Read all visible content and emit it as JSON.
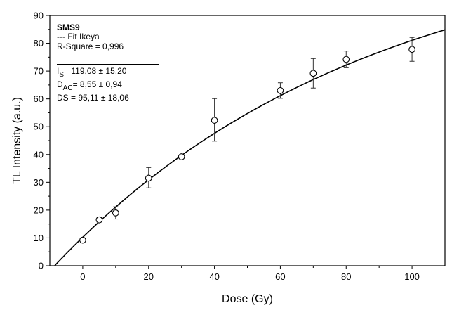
{
  "chart_data": {
    "type": "scatter",
    "title": "",
    "xlabel": "Dose (Gy)",
    "ylabel": "TL Intensity (a.u.)",
    "xlim": [
      -10,
      110
    ],
    "ylim": [
      0,
      90
    ],
    "x_ticks": [
      0,
      20,
      40,
      60,
      80,
      100
    ],
    "y_ticks": [
      0,
      10,
      20,
      30,
      40,
      50,
      60,
      70,
      80,
      90
    ],
    "grid": false,
    "series": [
      {
        "name": "SMS9",
        "marker": "open-circle",
        "x": [
          0,
          5,
          10,
          20,
          30,
          40,
          60,
          70,
          80,
          100
        ],
        "y": [
          9.2,
          16.5,
          19.0,
          31.5,
          39.2,
          52.3,
          63.0,
          69.2,
          74.2,
          77.8
        ],
        "y_err_low": [
          0.8,
          0.8,
          2.2,
          3.5,
          0.6,
          7.5,
          2.8,
          5.3,
          3.0,
          4.3
        ],
        "y_err_high": [
          0.8,
          0.8,
          2.2,
          3.8,
          0.6,
          7.8,
          2.8,
          5.3,
          3.0,
          4.3
        ]
      }
    ],
    "fit": {
      "name": "Fit Ikeya",
      "model": "y = Is*(1 - exp(-(x + Dac)/Ds))",
      "Is": 119.08,
      "Dac": 8.55,
      "Ds": 95.11
    },
    "legend": {
      "placement": "top-left",
      "lines": [
        {
          "prefix": "SMS9",
          "sub": "",
          "suffix": "",
          "bold": true
        },
        {
          "prefix": "--- Fit Ikeya",
          "sub": "",
          "suffix": "",
          "bold": false
        },
        {
          "prefix": "R-Square = 0,996",
          "sub": "",
          "suffix": "",
          "bold": false
        },
        {
          "prefix": "I",
          "sub": "S",
          "suffix": "= 119,08 ± 15,20",
          "bold": false
        },
        {
          "prefix": "D",
          "sub": "AC",
          "suffix": "= 8,55 ± 0,94",
          "bold": false
        },
        {
          "prefix": "DS = 95,11 ± 18,06",
          "sub": "",
          "suffix": "",
          "bold": false
        }
      ]
    }
  }
}
